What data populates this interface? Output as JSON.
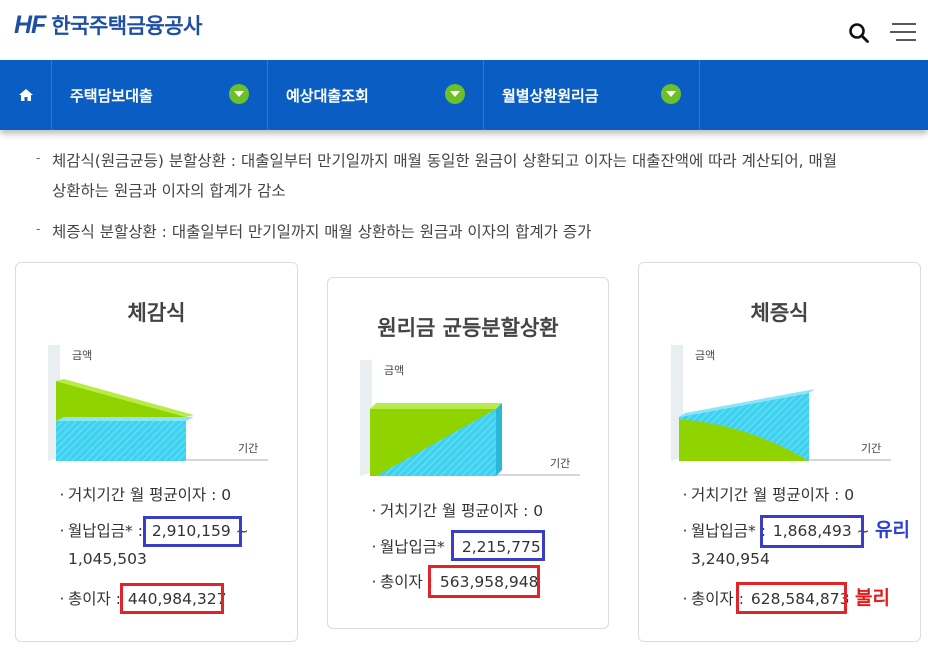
{
  "header": {
    "logo_mark": "HF",
    "logo_text": "한국주택금융공사",
    "icons": [
      "search-icon",
      "hamburger-menu-icon"
    ]
  },
  "nav": {
    "home_icon": "home-icon",
    "items": [
      {
        "label": "주택담보대출"
      },
      {
        "label": "예상대출조회"
      },
      {
        "label": "월별상환원리금"
      }
    ]
  },
  "description": {
    "line1a": "체감식(원금균등) 분할상환 : 대출일부터 만기일까지 매월 동일한 원금이 상환되고 이자는 대출잔액에 따라 계산되어, 매월",
    "line1b": "상환하는 원금과 이자의 합계가 감소",
    "line2": "체증식 분할상환 : 대출일부터 만기일까지 매월 상환하는 원금과 이자의 합계가 증가"
  },
  "cards": [
    {
      "title": "체감식",
      "y_label": "금액",
      "x_label": "기간",
      "grace_interest": "거치기간 월 평균이자 : 0",
      "payment_label": "월납입금* : ",
      "payment_value": "2,910,159 ~",
      "payment_value2": "1,045,503",
      "total_label": "총이자 : ",
      "total_value": "440,984,327"
    },
    {
      "title": "원리금 균등분할상환",
      "y_label": "금액",
      "x_label": "기간",
      "grace_interest": "거치기간 월 평균이자 : 0",
      "payment_label": "월납입금* : ",
      "payment_value": "2,215,775",
      "total_label": "총이자 : ",
      "total_value": "563,958,948"
    },
    {
      "title": "체증식",
      "y_label": "금액",
      "x_label": "기간",
      "grace_interest": "거치기간 월 평균이자 : 0",
      "payment_label": "월납입금* : ",
      "payment_value": "1,868,493 ~",
      "payment_value2": "3,240,954",
      "total_label": "총이자 : ",
      "total_value": "628,584,873"
    }
  ],
  "annotations": {
    "favorable": "유리",
    "unfavorable": "불리"
  },
  "colors": {
    "nav_bg": "#0a5dc2",
    "brand": "#1f4fa3",
    "principal_green": "#8fd400",
    "interest_cyan": "#3fd2f0",
    "box_blue": "#3a3ec4",
    "box_red": "#e0242a"
  }
}
